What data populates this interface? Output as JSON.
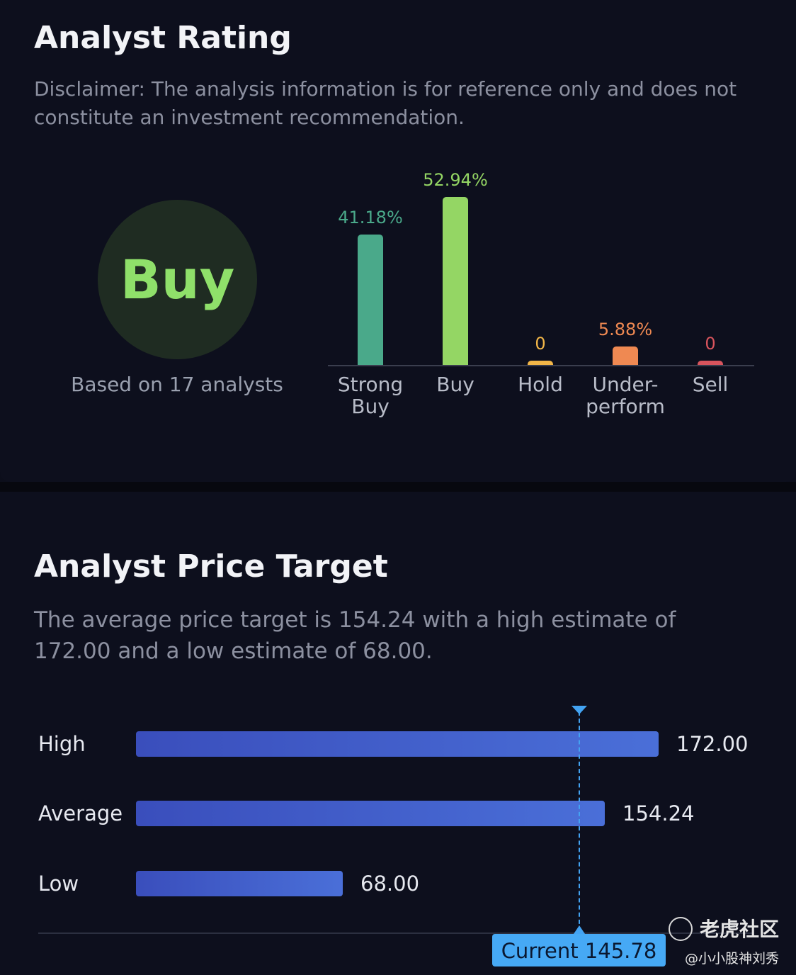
{
  "rating": {
    "title": "Analyst Rating",
    "disclaimer": "Disclaimer: The analysis information is for reference only and does not constitute an investment recommendation.",
    "consensus": "Buy",
    "based_on": "Based on 17 analysts",
    "colors": {
      "strong_buy": "#4aa98a",
      "buy": "#94d664",
      "hold": "#f2b648",
      "underperform": "#ef8952",
      "sell": "#d8545d"
    }
  },
  "chart_data": {
    "type": "bar",
    "categories": [
      "Strong Buy",
      "Buy",
      "Hold",
      "Under-perform",
      "Sell"
    ],
    "category_lines": [
      [
        "Strong",
        "Buy"
      ],
      [
        "Buy"
      ],
      [
        "Hold"
      ],
      [
        "Under-",
        "perform"
      ],
      [
        "Sell"
      ]
    ],
    "values": [
      41.18,
      52.94,
      0,
      5.88,
      0
    ],
    "value_labels": [
      "41.18%",
      "52.94%",
      "0",
      "5.88%",
      "0"
    ],
    "colors": [
      "#4aa98a",
      "#94d664",
      "#f2b648",
      "#ef8952",
      "#d8545d"
    ]
  },
  "price_target": {
    "title": "Analyst Price Target",
    "summary": "The average price target is 154.24 with a high estimate of 172.00 and a low estimate of 68.00.",
    "rows": [
      {
        "label": "High",
        "value": "172.00",
        "num": 172.0
      },
      {
        "label": "Average",
        "value": "154.24",
        "num": 154.24
      },
      {
        "label": "Low",
        "value": "68.00",
        "num": 68.0
      }
    ],
    "current_label": "Current 145.78",
    "current": 145.78,
    "bar_color": "#4a6fd8",
    "current_color": "#46a9f5"
  },
  "watermark": {
    "brand": "老虎社区",
    "user": "@小小股神刘秀"
  }
}
